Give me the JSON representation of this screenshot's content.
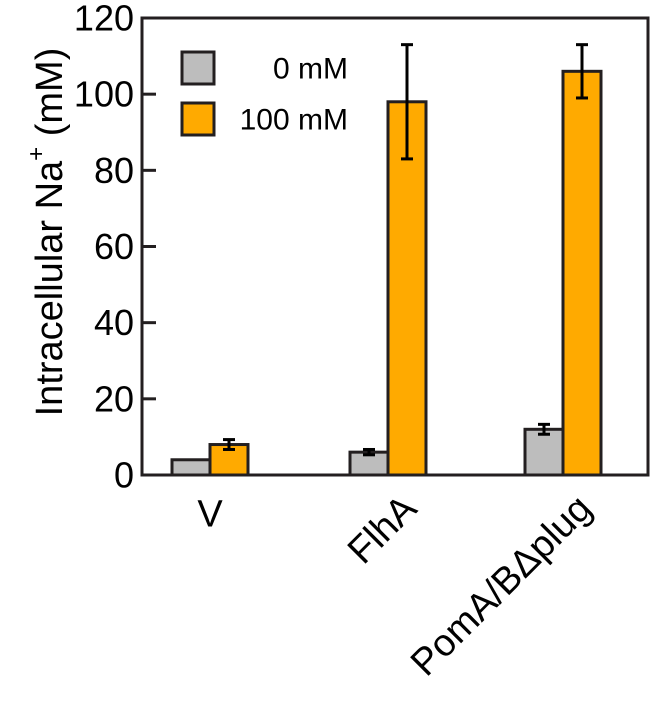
{
  "chart_data": {
    "type": "bar",
    "categories": [
      "V",
      "FlhA",
      "PomA/BΔplug"
    ],
    "series": [
      {
        "name": "0 mM",
        "color": "#bdbdbd",
        "values": [
          4,
          6,
          12
        ],
        "errors": [
          0,
          0.7,
          1.3
        ]
      },
      {
        "name": "100 mM",
        "color": "#ffaa00",
        "values": [
          8,
          98,
          106
        ],
        "errors": [
          1.3,
          15,
          7
        ]
      }
    ],
    "ylabel_main": "Intracellular Na",
    "ylabel_sup": "+",
    "ylabel_unit": " (mM)",
    "ylim": [
      0,
      120
    ],
    "yticks": [
      0,
      20,
      40,
      60,
      80,
      100,
      120
    ],
    "legend_position": "top-left",
    "grid": false
  }
}
